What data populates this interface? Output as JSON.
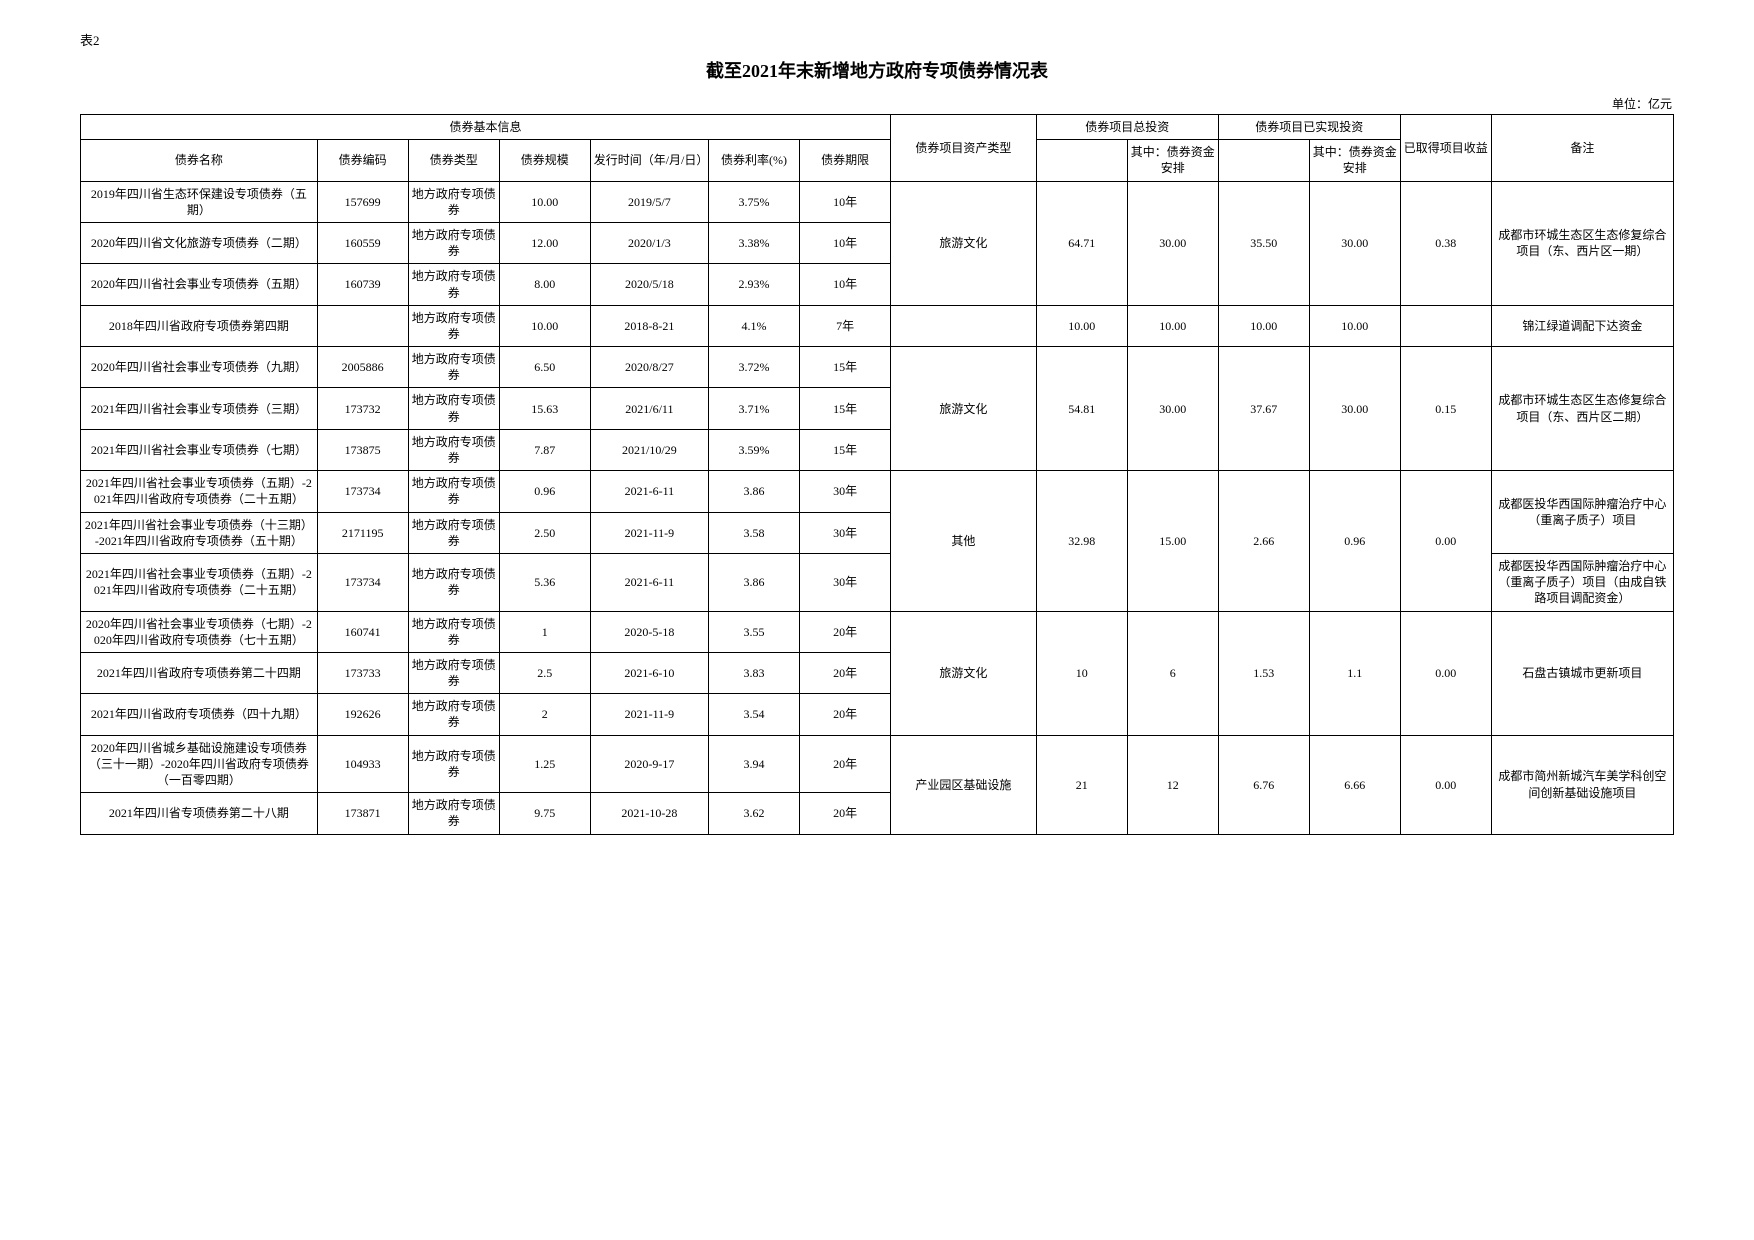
{
  "meta": {
    "table_label": "表2",
    "title": "截至2021年末新增地方政府专项债券情况表",
    "unit": "单位：亿元"
  },
  "headers": {
    "basic_info": "债券基本信息",
    "name": "债券名称",
    "code": "债券编码",
    "type": "债券类型",
    "scale": "债券规模",
    "date": "发行时间（年/月/日）",
    "rate": "债券利率(%)",
    "term": "债券期限",
    "asset": "债券项目资产类型",
    "total_inv": "债券项目总投资",
    "realized_inv": "债券项目已实现投资",
    "of_which": "其中：债券资金安排",
    "return": "已取得项目收益",
    "note": "备注"
  },
  "groups": [
    {
      "rows": [
        {
          "name": "2019年四川省生态环保建设专项债券（五期）",
          "code": "157699",
          "type": "地方政府专项债券",
          "scale": "10.00",
          "date": "2019/5/7",
          "rate": "3.75%",
          "term": "10年"
        },
        {
          "name": "2020年四川省文化旅游专项债券（二期）",
          "code": "160559",
          "type": "地方政府专项债券",
          "scale": "12.00",
          "date": "2020/1/3",
          "rate": "3.38%",
          "term": "10年"
        },
        {
          "name": "2020年四川省社会事业专项债券（五期）",
          "code": "160739",
          "type": "地方政府专项债券",
          "scale": "8.00",
          "date": "2020/5/18",
          "rate": "2.93%",
          "term": "10年"
        }
      ],
      "asset": "旅游文化",
      "inv_total": "64.71",
      "inv_bond": "30.00",
      "rea_total": "35.50",
      "rea_bond": "30.00",
      "ret": "0.38",
      "note": "成都市环城生态区生态修复综合项目（东、西片区一期）"
    },
    {
      "rows": [
        {
          "name": "2018年四川省政府专项债券第四期",
          "code": "",
          "type": "地方政府专项债券",
          "scale": "10.00",
          "date": "2018-8-21",
          "rate": "4.1%",
          "term": "7年"
        }
      ],
      "asset": "",
      "inv_total": "10.00",
      "inv_bond": "10.00",
      "rea_total": "10.00",
      "rea_bond": "10.00",
      "ret": "",
      "note": "锦江绿道调配下达资金"
    },
    {
      "rows": [
        {
          "name": "2020年四川省社会事业专项债券（九期）",
          "code": "2005886",
          "type": "地方政府专项债券",
          "scale": "6.50",
          "date": "2020/8/27",
          "rate": "3.72%",
          "term": "15年"
        },
        {
          "name": "2021年四川省社会事业专项债券（三期）",
          "code": "173732",
          "type": "地方政府专项债券",
          "scale": "15.63",
          "date": "2021/6/11",
          "rate": "3.71%",
          "term": "15年"
        },
        {
          "name": "2021年四川省社会事业专项债券（七期）",
          "code": "173875",
          "type": "地方政府专项债券",
          "scale": "7.87",
          "date": "2021/10/29",
          "rate": "3.59%",
          "term": "15年"
        }
      ],
      "asset": "旅游文化",
      "inv_total": "54.81",
      "inv_bond": "30.00",
      "rea_total": "37.67",
      "rea_bond": "30.00",
      "ret": "0.15",
      "note": "成都市环城生态区生态修复综合项目（东、西片区二期）"
    },
    {
      "rows": [
        {
          "name": "2021年四川省社会事业专项债券（五期）-2021年四川省政府专项债券（二十五期）",
          "code": "173734",
          "type": "地方政府专项债券",
          "scale": "0.96",
          "date": "2021-6-11",
          "rate": "3.86",
          "term": "30年",
          "note": ""
        },
        {
          "name": "2021年四川省社会事业专项债券（十三期）-2021年四川省政府专项债券（五十期）",
          "code": "2171195",
          "type": "地方政府专项债券",
          "scale": "2.50",
          "date": "2021-11-9",
          "rate": "3.58",
          "term": "30年",
          "note": ""
        },
        {
          "name": "2021年四川省社会事业专项债券（五期）-2021年四川省政府专项债券（二十五期）",
          "code": "173734",
          "type": "地方政府专项债券",
          "scale": "5.36",
          "date": "2021-6-11",
          "rate": "3.86",
          "term": "30年",
          "note": "成都医投华西国际肿瘤治疗中心（重离子质子）项目（由成自铁路项目调配资金）"
        }
      ],
      "asset": "其他",
      "inv_total": "32.98",
      "inv_bond": "15.00",
      "rea_total": "2.66",
      "rea_bond": "0.96",
      "ret": "0.00",
      "note_span": 2,
      "note": "成都医投华西国际肿瘤治疗中心（重离子质子）项目"
    },
    {
      "rows": [
        {
          "name": "2020年四川省社会事业专项债券（七期）-2020年四川省政府专项债券（七十五期）",
          "code": "160741",
          "type": "地方政府专项债券",
          "scale": "1",
          "date": "2020-5-18",
          "rate": "3.55",
          "term": "20年"
        },
        {
          "name": "2021年四川省政府专项债券第二十四期",
          "code": "173733",
          "type": "地方政府专项债券",
          "scale": "2.5",
          "date": "2021-6-10",
          "rate": "3.83",
          "term": "20年"
        },
        {
          "name": "2021年四川省政府专项债券（四十九期）",
          "code": "192626",
          "type": "地方政府专项债券",
          "scale": "2",
          "date": "2021-11-9",
          "rate": "3.54",
          "term": "20年"
        }
      ],
      "asset": "旅游文化",
      "inv_total": "10",
      "inv_bond": "6",
      "rea_total": "1.53",
      "rea_bond": "1.1",
      "ret": "0.00",
      "note": "石盘古镇城市更新项目"
    },
    {
      "rows": [
        {
          "name": "2020年四川省城乡基础设施建设专项债券（三十一期）-2020年四川省政府专项债券（一百零四期）",
          "code": "104933",
          "type": "地方政府专项债券",
          "scale": "1.25",
          "date": "2020-9-17",
          "rate": "3.94",
          "term": "20年"
        },
        {
          "name": "2021年四川省专项债券第二十八期",
          "code": "173871",
          "type": "地方政府专项债券",
          "scale": "9.75",
          "date": "2021-10-28",
          "rate": "3.62",
          "term": "20年"
        }
      ],
      "asset": "产业园区基础设施",
      "inv_total": "21",
      "inv_bond": "12",
      "rea_total": "6.76",
      "rea_bond": "6.66",
      "ret": "0.00",
      "note": "成都市简州新城汽车美学科创空间创新基础设施项目"
    }
  ]
}
